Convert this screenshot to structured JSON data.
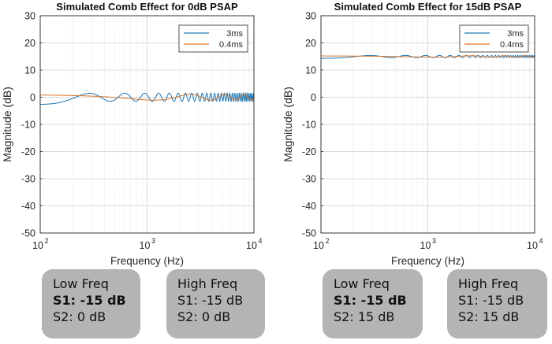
{
  "chart_data": [
    {
      "type": "line",
      "title": "Simulated Comb Effect for 0dB PSAP",
      "xlabel": "Frequency (Hz)",
      "ylabel": "Magnitude (dB)",
      "xscale": "log",
      "xlim": [
        100,
        10000
      ],
      "ylim": [
        -50,
        30
      ],
      "xticks": [
        {
          "base": "10",
          "exp": "2"
        },
        {
          "base": "10",
          "exp": "3"
        },
        {
          "base": "10",
          "exp": "4"
        }
      ],
      "yticks": [
        "30",
        "20",
        "10",
        "0",
        "-10",
        "-20",
        "-30",
        "-40",
        "-50"
      ],
      "grid": true,
      "legend": "top-right",
      "series": [
        {
          "name": "3ms",
          "color": "#1f77b4",
          "baseline": 0,
          "ripple_db": 1.5,
          "delay_ms": 3
        },
        {
          "name": "0.4ms",
          "color": "#d9752b",
          "baseline": 0,
          "ripple_db": 1.2,
          "delay_ms": 0.4
        }
      ]
    },
    {
      "type": "line",
      "title": "Simulated Comb Effect for 15dB PSAP",
      "xlabel": "Frequency (Hz)",
      "ylabel": "Magnitude (dB)",
      "xscale": "log",
      "xlim": [
        100,
        10000
      ],
      "ylim": [
        -50,
        30
      ],
      "xticks": [
        {
          "base": "10",
          "exp": "2"
        },
        {
          "base": "10",
          "exp": "3"
        },
        {
          "base": "10",
          "exp": "4"
        }
      ],
      "yticks": [
        "30",
        "20",
        "10",
        "0",
        "-10",
        "-20",
        "-30",
        "-40",
        "-50"
      ],
      "grid": true,
      "legend": "top-right",
      "series": [
        {
          "name": "3ms",
          "color": "#1f77b4",
          "baseline": 15,
          "ripple_db": 0.4,
          "delay_ms": 3
        },
        {
          "name": "0.4ms",
          "color": "#d9752b",
          "baseline": 15,
          "ripple_db": 0.3,
          "delay_ms": 0.4
        }
      ]
    }
  ],
  "boxes": [
    {
      "line1": "Low Freq",
      "line2": "S1: -15 dB",
      "line3": "S2: 0 dB"
    },
    {
      "line1": "High Freq",
      "line2": "S1: -15 dB",
      "line3": "S2: 0 dB"
    },
    {
      "line1": "Low Freq",
      "line2": "S1: -15 dB",
      "line3": "S2: 15 dB"
    },
    {
      "line1": "High Freq",
      "line2": "S1: -15 dB",
      "line3": "S2: 15 dB"
    }
  ]
}
